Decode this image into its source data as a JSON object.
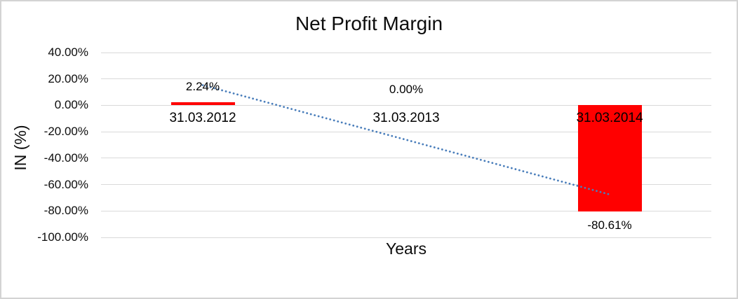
{
  "chart_data": {
    "type": "bar",
    "title": "Net Profit Margin",
    "xlabel": "Years",
    "ylabel": "IN (%)",
    "categories": [
      "31.03.2012",
      "31.03.2013",
      "31.03.2014"
    ],
    "series": [
      {
        "name": "Net Profit Margin",
        "type": "bar",
        "color": "#ff0000",
        "values": [
          2.24,
          0,
          -80.61
        ],
        "data_labels": [
          "2.24%",
          "0.00%",
          "-80.61%"
        ]
      }
    ],
    "trendline": {
      "type": "linear",
      "style": "dotted",
      "color": "#4a7ebb",
      "from": {
        "category_index": 0,
        "value": 15.3
      },
      "to": {
        "category_index": 2,
        "value": -67.5
      }
    },
    "y_axis": {
      "min": -100,
      "max": 40,
      "step": 20,
      "tick_labels": [
        "40.00%",
        "20.00%",
        "0.00%",
        "-20.00%",
        "-40.00%",
        "-60.00%",
        "-80.00%",
        "-100.00%"
      ]
    },
    "grid": true,
    "legend": "none",
    "gridline_color": "#d9d9d9",
    "frame_border_color": "#d3d3d3",
    "background_color": "#ffffff",
    "text_color": "#0d0d0d"
  }
}
